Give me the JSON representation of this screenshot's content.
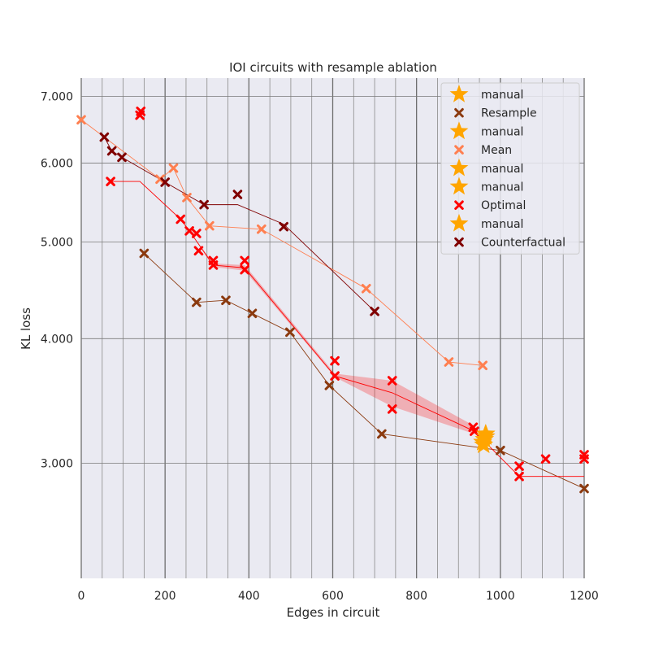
{
  "chart_data": {
    "type": "scatter",
    "title": "IOI circuits with resample ablation",
    "xlabel": "Edges in circuit",
    "ylabel": "KL loss",
    "xlim": [
      0,
      1200
    ],
    "ylim": [
      2.3,
      7.3
    ],
    "yscale": "log",
    "grid": true,
    "legend_placement": "top-right",
    "x_ticks": [
      0,
      200,
      400,
      600,
      800,
      1000,
      1200
    ],
    "x_tick_labels": [
      "0",
      "200",
      "400",
      "600",
      "800",
      "1000",
      "1200"
    ],
    "y_ticks": [
      3.0,
      4.0,
      5.0,
      6.0,
      7.0
    ],
    "y_tick_labels": [
      "3.000",
      "4.000",
      "5.000",
      "6.000",
      "7.000"
    ],
    "x_minor_gridlines": [
      50,
      100,
      150,
      250,
      300,
      350,
      450,
      500,
      550,
      650,
      700,
      750,
      850,
      900,
      950,
      1050,
      1100,
      1150
    ],
    "legend": [
      {
        "label": "manual",
        "marker": "star",
        "color": "#FFA500"
      },
      {
        "label": "Resample",
        "marker": "x",
        "color": "#8B3A0F"
      },
      {
        "label": "manual",
        "marker": "star",
        "color": "#FFA500"
      },
      {
        "label": "Mean",
        "marker": "x",
        "color": "#FF7F50"
      },
      {
        "label": "manual",
        "marker": "star",
        "color": "#FFA500"
      },
      {
        "label": "manual",
        "marker": "star",
        "color": "#FFA500"
      },
      {
        "label": "Optimal",
        "marker": "x",
        "color": "#FF0000"
      },
      {
        "label": "manual",
        "marker": "star",
        "color": "#FFA500"
      },
      {
        "label": "Counterfactual",
        "marker": "x",
        "color": "#800000"
      }
    ],
    "series": [
      {
        "name": "Resample",
        "color": "#8B3A0F",
        "points": [
          [
            150,
            4.87
          ],
          [
            275,
            4.35
          ],
          [
            345,
            4.37
          ],
          [
            408,
            4.24
          ],
          [
            498,
            4.06
          ],
          [
            592,
            3.59
          ],
          [
            717,
            3.21
          ],
          [
            1000,
            3.09
          ],
          [
            1200,
            2.83
          ]
        ],
        "line": [
          [
            150,
            4.87
          ],
          [
            275,
            4.35
          ],
          [
            345,
            4.37
          ],
          [
            408,
            4.24
          ],
          [
            498,
            4.06
          ],
          [
            592,
            3.59
          ],
          [
            717,
            3.21
          ],
          [
            1000,
            3.09
          ],
          [
            1200,
            2.83
          ]
        ]
      },
      {
        "name": "Mean",
        "color": "#FF7F50",
        "points": [
          [
            0,
            6.63
          ],
          [
            188,
            5.78
          ],
          [
            220,
            5.93
          ],
          [
            252,
            5.54
          ],
          [
            306,
            5.19
          ],
          [
            430,
            5.15
          ],
          [
            680,
            4.49
          ],
          [
            877,
            3.79
          ],
          [
            958,
            3.76
          ]
        ],
        "line": [
          [
            0,
            6.63
          ],
          [
            188,
            5.78
          ],
          [
            220,
            5.93
          ],
          [
            252,
            5.54
          ],
          [
            306,
            5.19
          ],
          [
            430,
            5.15
          ],
          [
            680,
            4.49
          ],
          [
            877,
            3.79
          ],
          [
            958,
            3.76
          ]
        ]
      },
      {
        "name": "Optimal",
        "color": "#FF0000",
        "points": [
          [
            70,
            5.75
          ],
          [
            140,
            6.7
          ],
          [
            142,
            6.76
          ],
          [
            237,
            5.27
          ],
          [
            258,
            5.13
          ],
          [
            275,
            5.1
          ],
          [
            280,
            4.9
          ],
          [
            315,
            4.79
          ],
          [
            315,
            4.74
          ],
          [
            390,
            4.79
          ],
          [
            390,
            4.69
          ],
          [
            605,
            3.8
          ],
          [
            605,
            3.67
          ],
          [
            742,
            3.63
          ],
          [
            742,
            3.4
          ],
          [
            935,
            3.26
          ],
          [
            938,
            3.23
          ],
          [
            1045,
            2.98
          ],
          [
            1045,
            2.91
          ],
          [
            1108,
            3.03
          ],
          [
            1200,
            3.06
          ],
          [
            1200,
            3.03
          ]
        ],
        "line": [
          [
            70,
            5.75
          ],
          [
            140,
            5.75
          ],
          [
            237,
            5.27
          ],
          [
            258,
            5.13
          ],
          [
            315,
            4.74
          ],
          [
            390,
            4.71
          ],
          [
            605,
            3.67
          ],
          [
            742,
            3.53
          ],
          [
            938,
            3.23
          ],
          [
            1045,
            2.91
          ],
          [
            1200,
            2.91
          ]
        ],
        "band_upper": [
          [
            237,
            5.27
          ],
          [
            258,
            5.13
          ],
          [
            315,
            4.76
          ],
          [
            390,
            4.74
          ],
          [
            605,
            3.69
          ],
          [
            742,
            3.63
          ],
          [
            938,
            3.27
          ]
        ],
        "band_lower": [
          [
            237,
            5.27
          ],
          [
            258,
            5.13
          ],
          [
            315,
            4.72
          ],
          [
            390,
            4.68
          ],
          [
            605,
            3.66
          ],
          [
            742,
            3.42
          ],
          [
            938,
            3.21
          ]
        ]
      },
      {
        "name": "Counterfactual",
        "color": "#800000",
        "points": [
          [
            55,
            6.37
          ],
          [
            73,
            6.17
          ],
          [
            97,
            6.08
          ],
          [
            200,
            5.74
          ],
          [
            293,
            5.45
          ],
          [
            373,
            5.58
          ],
          [
            483,
            5.18
          ],
          [
            700,
            4.26
          ]
        ],
        "line": [
          [
            55,
            6.37
          ],
          [
            73,
            6.17
          ],
          [
            97,
            6.08
          ],
          [
            200,
            5.74
          ],
          [
            293,
            5.45
          ],
          [
            373,
            5.45
          ],
          [
            483,
            5.21
          ],
          [
            700,
            4.26
          ]
        ]
      },
      {
        "name": "manual",
        "color": "#FFA500",
        "marker": "star",
        "points": [
          [
            965,
            3.21
          ],
          [
            965,
            3.19
          ],
          [
            962,
            3.17
          ],
          [
            958,
            3.15
          ],
          [
            960,
            3.13
          ]
        ]
      }
    ]
  }
}
